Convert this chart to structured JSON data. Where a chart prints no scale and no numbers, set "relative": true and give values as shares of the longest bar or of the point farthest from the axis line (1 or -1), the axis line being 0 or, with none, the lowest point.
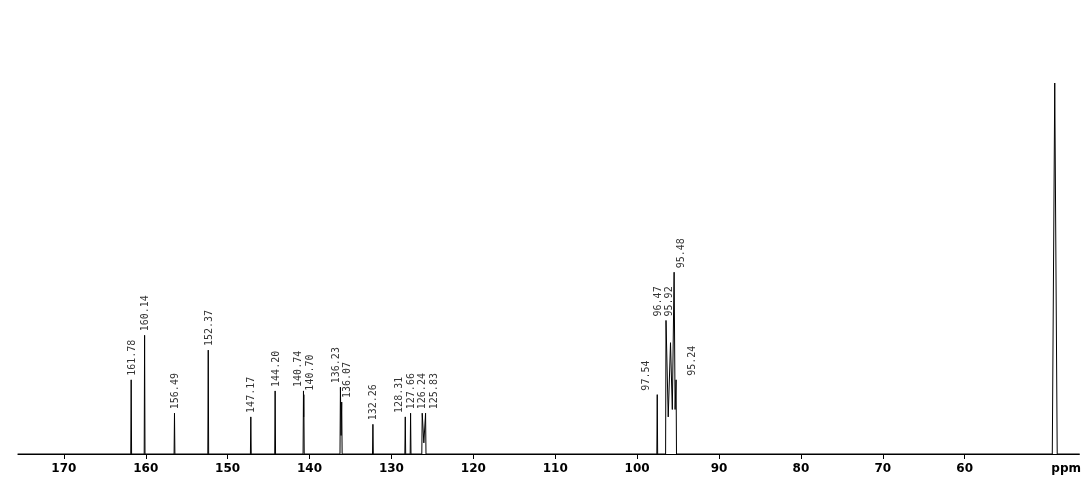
{
  "chart_data": {
    "type": "line",
    "relative": true,
    "xlabel": "ppm",
    "xlim": [
      175.6,
      46
    ],
    "xticks": [
      170,
      160,
      150,
      140,
      130,
      120,
      110,
      100,
      90,
      80,
      70,
      60
    ],
    "color": "#000000",
    "marker": "none",
    "grid": false,
    "x": [
      175.6,
      161.83,
      161.78,
      161.73,
      160.19,
      160.14,
      160.09,
      156.54,
      156.49,
      156.44,
      152.42,
      152.37,
      152.32,
      147.22,
      147.17,
      147.12,
      144.25,
      144.2,
      144.15,
      140.79,
      140.74,
      140.72,
      140.7,
      140.65,
      136.28,
      136.23,
      136.15,
      136.07,
      136.02,
      132.31,
      132.26,
      132.21,
      128.36,
      128.31,
      128.26,
      127.71,
      127.66,
      127.61,
      126.29,
      126.24,
      126.04,
      125.83,
      125.78,
      97.59,
      97.54,
      97.49,
      96.52,
      96.47,
      96.2,
      95.92,
      95.7,
      95.48,
      95.36,
      95.24,
      95.19,
      49.3,
      49.0,
      48.7,
      46
    ],
    "values": [
      0,
      0,
      0.2,
      0,
      0,
      0.32,
      0,
      0,
      0.11,
      0,
      0,
      0.28,
      0,
      0,
      0.1,
      0,
      0,
      0.17,
      0,
      0,
      0.17,
      0.1,
      0.16,
      0,
      0,
      0.18,
      0.05,
      0.14,
      0,
      0,
      0.08,
      0,
      0,
      0.1,
      0,
      0,
      0.11,
      0,
      0,
      0.11,
      0.03,
      0.11,
      0,
      0,
      0.16,
      0,
      0,
      0.36,
      0.1,
      0.3,
      0.12,
      0.49,
      0.12,
      0.2,
      0,
      0,
      1,
      0,
      0
    ],
    "annotations": [
      {
        "text": "161.78",
        "x": 161.78,
        "y": 0.2
      },
      {
        "text": "160.14",
        "x": 160.14,
        "y": 0.32
      },
      {
        "text": "156.49",
        "x": 156.49,
        "y": 0.11
      },
      {
        "text": "152.37",
        "x": 152.37,
        "y": 0.28
      },
      {
        "text": "147.17",
        "x": 147.17,
        "y": 0.1
      },
      {
        "text": "144.20",
        "x": 144.2,
        "y": 0.17
      },
      {
        "text": "140.74",
        "x": 140.74,
        "y": 0.17
      },
      {
        "text": "140.70",
        "x": 140.7,
        "y": 0.16
      },
      {
        "text": "136.23",
        "x": 136.23,
        "y": 0.18
      },
      {
        "text": "136.07",
        "x": 136.07,
        "y": 0.14
      },
      {
        "text": "132.26",
        "x": 132.26,
        "y": 0.08
      },
      {
        "text": "128.31",
        "x": 128.31,
        "y": 0.1
      },
      {
        "text": "127.66",
        "x": 127.66,
        "y": 0.11
      },
      {
        "text": "126.24",
        "x": 126.24,
        "y": 0.11
      },
      {
        "text": "125.83",
        "x": 125.83,
        "y": 0.11
      },
      {
        "text": "97.54",
        "x": 97.54,
        "y": 0.16
      },
      {
        "text": "96.47",
        "x": 96.47,
        "y": 0.36
      },
      {
        "text": "95.92",
        "x": 95.92,
        "y": 0.3
      },
      {
        "text": "95.48",
        "x": 95.48,
        "y": 0.49
      },
      {
        "text": "95.24",
        "x": 95.24,
        "y": 0.2
      }
    ]
  }
}
